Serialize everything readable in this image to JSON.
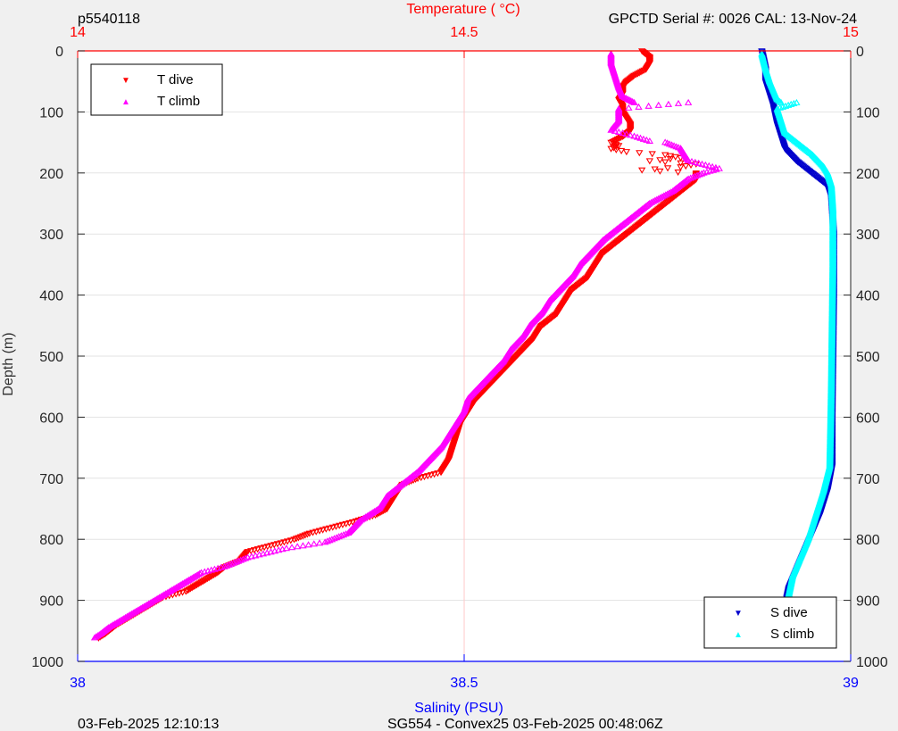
{
  "header": {
    "left_id": "p5540118",
    "serial": "GPCTD Serial #: 0026 CAL: 13-Nov-24"
  },
  "footer": {
    "left": "03-Feb-2025 12:10:13",
    "center": "SG554 - Convex25 03-Feb-2025 00:48:06Z"
  },
  "chart_data": {
    "type": "scatter",
    "title": "",
    "y_axis": {
      "label": "Depth (m)",
      "range": [
        0,
        1000
      ],
      "reversed": true,
      "ticks": [
        0,
        100,
        200,
        300,
        400,
        500,
        600,
        700,
        800,
        900,
        1000
      ],
      "grid": true
    },
    "x_top_axis": {
      "label": "Temperature (   °C)",
      "range": [
        14,
        15
      ],
      "ticks": [
        14,
        14.5,
        15
      ],
      "color": "#ff0000"
    },
    "x_bottom_axis": {
      "label": "Salinity (PSU)",
      "range": [
        38,
        39
      ],
      "ticks": [
        38,
        38.5,
        39
      ],
      "color": "#0000ff"
    },
    "legends": [
      {
        "position": "top-left",
        "entries": [
          {
            "name": "T dive",
            "marker": "triangle-down",
            "color": "#ff0000"
          },
          {
            "name": "T climb",
            "marker": "triangle-up",
            "color": "#ff00ff"
          }
        ]
      },
      {
        "position": "bottom-right",
        "entries": [
          {
            "name": "S dive",
            "marker": "triangle-down",
            "color": "#0000cc"
          },
          {
            "name": "S climb",
            "marker": "triangle-up",
            "color": "#00ffff"
          }
        ]
      }
    ],
    "series": [
      {
        "name": "T dive",
        "axis": "temperature",
        "color": "#ff0000",
        "marker": "triangle-down",
        "points": [
          [
            14.73,
            0
          ],
          [
            14.74,
            10
          ],
          [
            14.74,
            20
          ],
          [
            14.735,
            30
          ],
          [
            14.72,
            40
          ],
          [
            14.71,
            50
          ],
          [
            14.705,
            60
          ],
          [
            14.705,
            70
          ],
          [
            14.7,
            80
          ],
          [
            14.705,
            90
          ],
          [
            14.705,
            100
          ],
          [
            14.71,
            110
          ],
          [
            14.715,
            120
          ],
          [
            14.715,
            130
          ],
          [
            14.705,
            140
          ],
          [
            14.69,
            150
          ],
          [
            14.7,
            155
          ],
          [
            14.69,
            160
          ],
          [
            14.71,
            165
          ],
          [
            14.76,
            170
          ],
          [
            14.78,
            175
          ],
          [
            14.74,
            180
          ],
          [
            14.8,
            185
          ],
          [
            14.78,
            190
          ],
          [
            14.73,
            195
          ],
          [
            14.8,
            200
          ],
          [
            14.8,
            210
          ],
          [
            14.78,
            230
          ],
          [
            14.76,
            250
          ],
          [
            14.74,
            270
          ],
          [
            14.72,
            290
          ],
          [
            14.7,
            310
          ],
          [
            14.68,
            330
          ],
          [
            14.67,
            350
          ],
          [
            14.66,
            370
          ],
          [
            14.64,
            390
          ],
          [
            14.63,
            410
          ],
          [
            14.62,
            430
          ],
          [
            14.6,
            450
          ],
          [
            14.59,
            470
          ],
          [
            14.575,
            490
          ],
          [
            14.56,
            510
          ],
          [
            14.545,
            530
          ],
          [
            14.53,
            550
          ],
          [
            14.515,
            570
          ],
          [
            14.505,
            590
          ],
          [
            14.495,
            610
          ],
          [
            14.49,
            630
          ],
          [
            14.485,
            650
          ],
          [
            14.48,
            670
          ],
          [
            14.47,
            690
          ],
          [
            14.44,
            700
          ],
          [
            14.42,
            710
          ],
          [
            14.41,
            730
          ],
          [
            14.4,
            750
          ],
          [
            14.385,
            760
          ],
          [
            14.36,
            770
          ],
          [
            14.33,
            780
          ],
          [
            14.3,
            790
          ],
          [
            14.28,
            800
          ],
          [
            14.25,
            810
          ],
          [
            14.22,
            820
          ],
          [
            14.21,
            835
          ],
          [
            14.19,
            845
          ],
          [
            14.18,
            855
          ],
          [
            14.16,
            870
          ],
          [
            14.14,
            885
          ],
          [
            14.11,
            895
          ],
          [
            14.09,
            910
          ],
          [
            14.07,
            925
          ],
          [
            14.05,
            940
          ],
          [
            14.035,
            955
          ],
          [
            14.025,
            963
          ]
        ]
      },
      {
        "name": "T climb",
        "axis": "temperature",
        "color": "#ff00ff",
        "marker": "triangle-up",
        "points": [
          [
            14.69,
            5
          ],
          [
            14.69,
            20
          ],
          [
            14.695,
            40
          ],
          [
            14.7,
            60
          ],
          [
            14.705,
            75
          ],
          [
            14.72,
            85
          ],
          [
            14.79,
            85
          ],
          [
            14.7,
            95
          ],
          [
            14.7,
            115
          ],
          [
            14.69,
            130
          ],
          [
            14.705,
            135
          ],
          [
            14.72,
            140
          ],
          [
            14.74,
            148
          ],
          [
            14.76,
            150
          ],
          [
            14.78,
            160
          ],
          [
            14.79,
            180
          ],
          [
            14.83,
            193
          ],
          [
            14.81,
            200
          ],
          [
            14.79,
            210
          ],
          [
            14.77,
            230
          ],
          [
            14.74,
            250
          ],
          [
            14.72,
            270
          ],
          [
            14.7,
            290
          ],
          [
            14.68,
            310
          ],
          [
            14.665,
            330
          ],
          [
            14.65,
            350
          ],
          [
            14.64,
            370
          ],
          [
            14.625,
            390
          ],
          [
            14.61,
            410
          ],
          [
            14.6,
            430
          ],
          [
            14.585,
            450
          ],
          [
            14.575,
            470
          ],
          [
            14.56,
            490
          ],
          [
            14.55,
            510
          ],
          [
            14.535,
            530
          ],
          [
            14.52,
            550
          ],
          [
            14.505,
            570
          ],
          [
            14.5,
            590
          ],
          [
            14.49,
            610
          ],
          [
            14.48,
            630
          ],
          [
            14.47,
            650
          ],
          [
            14.455,
            670
          ],
          [
            14.44,
            690
          ],
          [
            14.42,
            710
          ],
          [
            14.4,
            730
          ],
          [
            14.39,
            750
          ],
          [
            14.365,
            770
          ],
          [
            14.35,
            790
          ],
          [
            14.32,
            805
          ],
          [
            14.27,
            815
          ],
          [
            14.22,
            830
          ],
          [
            14.19,
            845
          ],
          [
            14.16,
            855
          ],
          [
            14.14,
            870
          ],
          [
            14.12,
            885
          ],
          [
            14.1,
            900
          ],
          [
            14.08,
            915
          ],
          [
            14.06,
            930
          ],
          [
            14.04,
            945
          ],
          [
            14.03,
            955
          ],
          [
            14.02,
            963
          ]
        ]
      },
      {
        "name": "S dive",
        "axis": "salinity",
        "color": "#0000cc",
        "marker": "triangle-down",
        "points": [
          [
            38.885,
            0
          ],
          [
            38.89,
            30
          ],
          [
            38.89,
            50
          ],
          [
            38.895,
            70
          ],
          [
            38.9,
            90
          ],
          [
            38.905,
            120
          ],
          [
            38.91,
            140
          ],
          [
            38.915,
            160
          ],
          [
            38.93,
            180
          ],
          [
            38.95,
            200
          ],
          [
            38.97,
            220
          ],
          [
            38.975,
            240
          ],
          [
            38.978,
            300
          ],
          [
            38.978,
            400
          ],
          [
            38.977,
            500
          ],
          [
            38.976,
            600
          ],
          [
            38.976,
            680
          ],
          [
            38.97,
            720
          ],
          [
            38.96,
            760
          ],
          [
            38.95,
            790
          ],
          [
            38.94,
            820
          ],
          [
            38.93,
            850
          ],
          [
            38.92,
            880
          ],
          [
            38.915,
            910
          ],
          [
            38.91,
            940
          ],
          [
            38.905,
            963
          ]
        ]
      },
      {
        "name": "S climb",
        "axis": "salinity",
        "color": "#00ffff",
        "marker": "triangle-up",
        "points": [
          [
            38.885,
            5
          ],
          [
            38.89,
            30
          ],
          [
            38.895,
            50
          ],
          [
            38.9,
            65
          ],
          [
            38.905,
            80
          ],
          [
            38.91,
            85
          ],
          [
            38.93,
            85
          ],
          [
            38.905,
            95
          ],
          [
            38.91,
            115
          ],
          [
            38.915,
            135
          ],
          [
            38.93,
            150
          ],
          [
            38.95,
            170
          ],
          [
            38.965,
            190
          ],
          [
            38.97,
            200
          ],
          [
            38.975,
            220
          ],
          [
            38.977,
            260
          ],
          [
            38.977,
            350
          ],
          [
            38.976,
            450
          ],
          [
            38.975,
            550
          ],
          [
            38.974,
            620
          ],
          [
            38.973,
            680
          ],
          [
            38.965,
            720
          ],
          [
            38.955,
            760
          ],
          [
            38.945,
            800
          ],
          [
            38.935,
            830
          ],
          [
            38.925,
            860
          ],
          [
            38.92,
            890
          ],
          [
            38.915,
            920
          ],
          [
            38.91,
            945
          ],
          [
            38.905,
            963
          ]
        ]
      }
    ]
  }
}
